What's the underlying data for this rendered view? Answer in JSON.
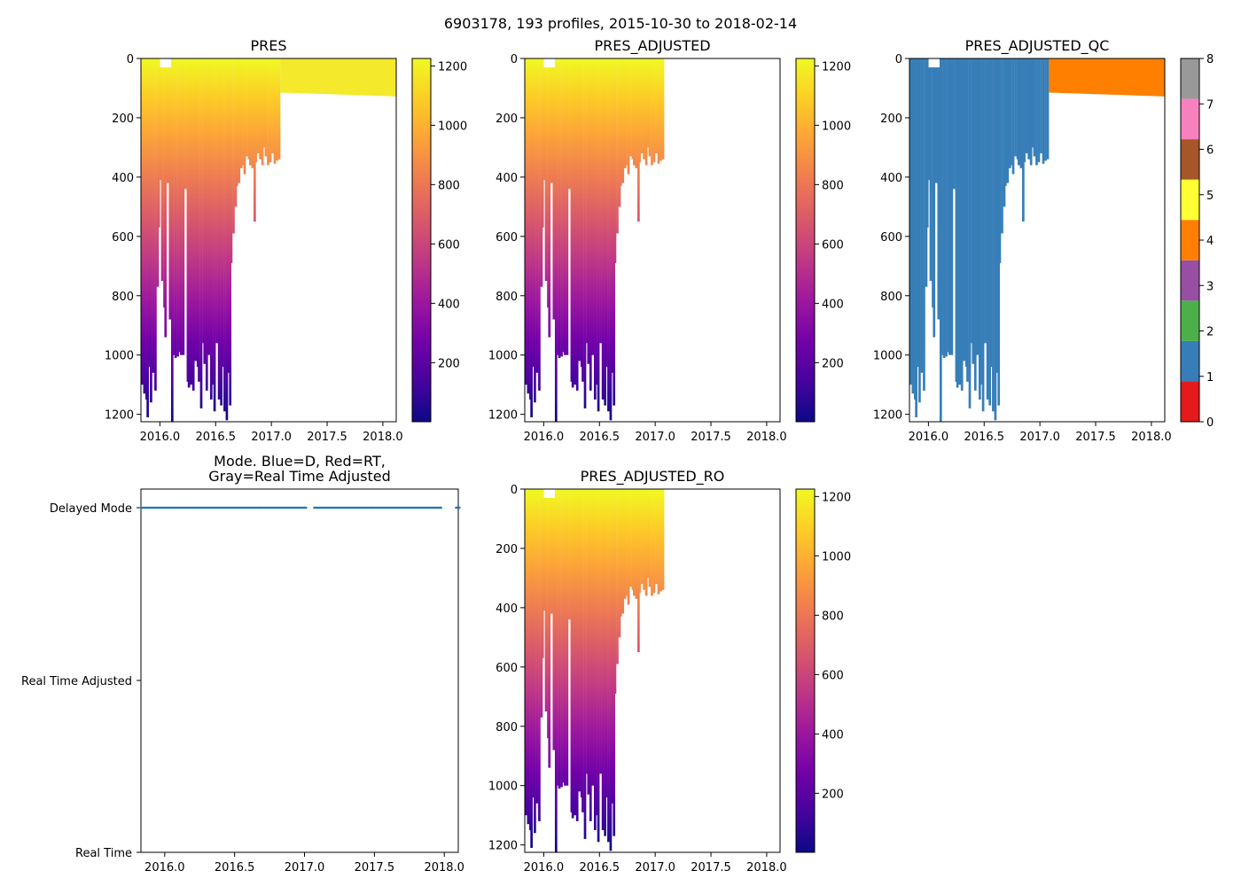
{
  "suptitle": "6903178, 193 profiles, 2015-10-30 to 2018-02-14",
  "colors": {
    "plasma": [
      "#0d0887",
      "#46039f",
      "#7201a8",
      "#9c179e",
      "#bd3786",
      "#d8576b",
      "#ed7953",
      "#fb9f3a",
      "#fdca26",
      "#f0f921"
    ],
    "qc": [
      "#e41a1c",
      "#377eb8",
      "#4daf4a",
      "#984ea3",
      "#ff7f00",
      "#ffff33",
      "#a65628",
      "#f781bf",
      "#999999"
    ],
    "mode_delayed": "#1f77b4"
  },
  "chart_data": [
    {
      "type": "heatmap",
      "title": "PRES",
      "colormap": "plasma",
      "xlim": [
        2015.83,
        2018.12
      ],
      "ylim": [
        1225,
        0
      ],
      "xticks": [
        "2016.0",
        "2016.5",
        "2017.0",
        "2017.5",
        "2018.0"
      ],
      "yticks": [
        "0",
        "200",
        "400",
        "600",
        "800",
        "1000",
        "1200"
      ],
      "colorbar": {
        "range": [
          1,
          1225
        ],
        "ticks": [
          "200",
          "400",
          "600",
          "800",
          "1000",
          "1200"
        ]
      },
      "data_end": 2018.12
    },
    {
      "type": "heatmap",
      "title": "PRES_ADJUSTED",
      "colormap": "plasma",
      "xlim": [
        2015.83,
        2018.12
      ],
      "ylim": [
        1225,
        0
      ],
      "xticks": [
        "2016.0",
        "2016.5",
        "2017.0",
        "2017.5",
        "2018.0"
      ],
      "yticks": [
        "0",
        "200",
        "400",
        "600",
        "800",
        "1000",
        "1200"
      ],
      "colorbar": {
        "range": [
          1,
          1225
        ],
        "ticks": [
          "200",
          "400",
          "600",
          "800",
          "1000",
          "1200"
        ]
      },
      "data_end": 2017.06
    },
    {
      "type": "heatmap",
      "title": "PRES_ADJUSTED_QC",
      "colormap": "qc",
      "xlim": [
        2015.83,
        2018.12
      ],
      "ylim": [
        1225,
        0
      ],
      "xticks": [
        "2016.0",
        "2016.5",
        "2017.0",
        "2017.5",
        "2018.0"
      ],
      "yticks": [
        "0",
        "200",
        "400",
        "600",
        "800",
        "1000",
        "1200"
      ],
      "colorbar": {
        "range": [
          0,
          8
        ],
        "ticks": [
          "0",
          "1",
          "2",
          "3",
          "4",
          "5",
          "6",
          "7",
          "8"
        ]
      },
      "qc_segments": [
        {
          "from": 2015.83,
          "to": 2017.06,
          "qc": 1
        },
        {
          "from": 2017.06,
          "to": 2018.12,
          "qc": 4
        }
      ]
    },
    {
      "type": "scatter",
      "title": "Mode. Blue=D, Red=RT,",
      "title_line2": "Gray=Real Time Adjusted",
      "xlim": [
        2015.83,
        2018.1
      ],
      "xticks": [
        "2016.0",
        "2016.5",
        "2017.0",
        "2017.5",
        "2018.0"
      ],
      "ycategories": [
        "Delayed Mode",
        "Real Time Adjusted",
        "Real Time"
      ],
      "series": [
        {
          "name": "Delayed Mode",
          "category": "Delayed Mode",
          "x_range": [
            2015.83,
            2018.12
          ],
          "count": 193
        }
      ]
    },
    {
      "type": "heatmap",
      "title": "PRES_ADJUSTED_RO",
      "colormap": "plasma",
      "xlim": [
        2015.83,
        2018.12
      ],
      "ylim": [
        1225,
        0
      ],
      "xticks": [
        "2016.0",
        "2016.5",
        "2017.0",
        "2017.5",
        "2018.0"
      ],
      "yticks": [
        "0",
        "200",
        "400",
        "600",
        "800",
        "1000",
        "1200"
      ],
      "colorbar": {
        "range": [
          1,
          1225
        ],
        "ticks": [
          "200",
          "400",
          "600",
          "800",
          "1000",
          "1200"
        ]
      },
      "data_end": 2017.06
    }
  ],
  "profiles": {
    "first": 2015.83,
    "last_deep": 2017.06,
    "last": 2018.12,
    "max_pressure": [
      [
        2015.83,
        1100
      ],
      [
        2015.85,
        1130
      ],
      [
        2015.87,
        1150
      ],
      [
        2015.88,
        1210
      ],
      [
        2015.9,
        1040
      ],
      [
        2015.91,
        1160
      ],
      [
        2015.93,
        1060
      ],
      [
        2015.95,
        1120
      ],
      [
        2015.97,
        770
      ],
      [
        2015.98,
        570
      ],
      [
        2016.0,
        410
      ],
      [
        2016.01,
        750
      ],
      [
        2016.03,
        840
      ],
      [
        2016.04,
        940
      ],
      [
        2016.06,
        420
      ],
      [
        2016.08,
        880
      ],
      [
        2016.1,
        1225
      ],
      [
        2016.11,
        1000
      ],
      [
        2016.13,
        1010
      ],
      [
        2016.15,
        1005
      ],
      [
        2016.17,
        990
      ],
      [
        2016.18,
        1000
      ],
      [
        2016.2,
        1000
      ],
      [
        2016.22,
        440
      ],
      [
        2016.24,
        1090
      ],
      [
        2016.25,
        1110
      ],
      [
        2016.27,
        1100
      ],
      [
        2016.29,
        1120
      ],
      [
        2016.31,
        1020
      ],
      [
        2016.33,
        1040
      ],
      [
        2016.34,
        1090
      ],
      [
        2016.36,
        1180
      ],
      [
        2016.38,
        960
      ],
      [
        2016.39,
        1030
      ],
      [
        2016.41,
        1120
      ],
      [
        2016.43,
        1000
      ],
      [
        2016.45,
        1150
      ],
      [
        2016.46,
        1100
      ],
      [
        2016.48,
        1190
      ],
      [
        2016.5,
        960
      ],
      [
        2016.52,
        1150
      ],
      [
        2016.54,
        1170
      ],
      [
        2016.55,
        1040
      ],
      [
        2016.57,
        1190
      ],
      [
        2016.59,
        1220
      ],
      [
        2016.6,
        1060
      ],
      [
        2016.62,
        1170
      ],
      [
        2016.63,
        690
      ],
      [
        2016.65,
        590
      ],
      [
        2016.67,
        500
      ],
      [
        2016.68,
        430
      ],
      [
        2016.7,
        420
      ],
      [
        2016.72,
        370
      ],
      [
        2016.73,
        360
      ],
      [
        2016.75,
        390
      ],
      [
        2016.77,
        330
      ],
      [
        2016.79,
        340
      ],
      [
        2016.8,
        360
      ],
      [
        2016.82,
        370
      ],
      [
        2016.84,
        550
      ],
      [
        2016.85,
        350
      ],
      [
        2016.87,
        320
      ],
      [
        2016.89,
        340
      ],
      [
        2016.91,
        360
      ],
      [
        2016.93,
        300
      ],
      [
        2016.94,
        330
      ],
      [
        2016.96,
        360
      ],
      [
        2016.98,
        350
      ],
      [
        2017.0,
        320
      ],
      [
        2017.02,
        355
      ],
      [
        2017.04,
        345
      ],
      [
        2017.06,
        340
      ]
    ],
    "gaps": [
      [
        2015.93,
        2015.94
      ],
      [
        2016.06,
        2016.07
      ],
      [
        2016.2,
        2016.21
      ]
    ],
    "top_gaps": [
      [
        2016.0,
        2016.09,
        30
      ]
    ],
    "shallow_depth_start": 115,
    "shallow_depth_end": 128
  },
  "axis_mode": {
    "gap": [
      2017.02,
      2017.07
    ]
  }
}
